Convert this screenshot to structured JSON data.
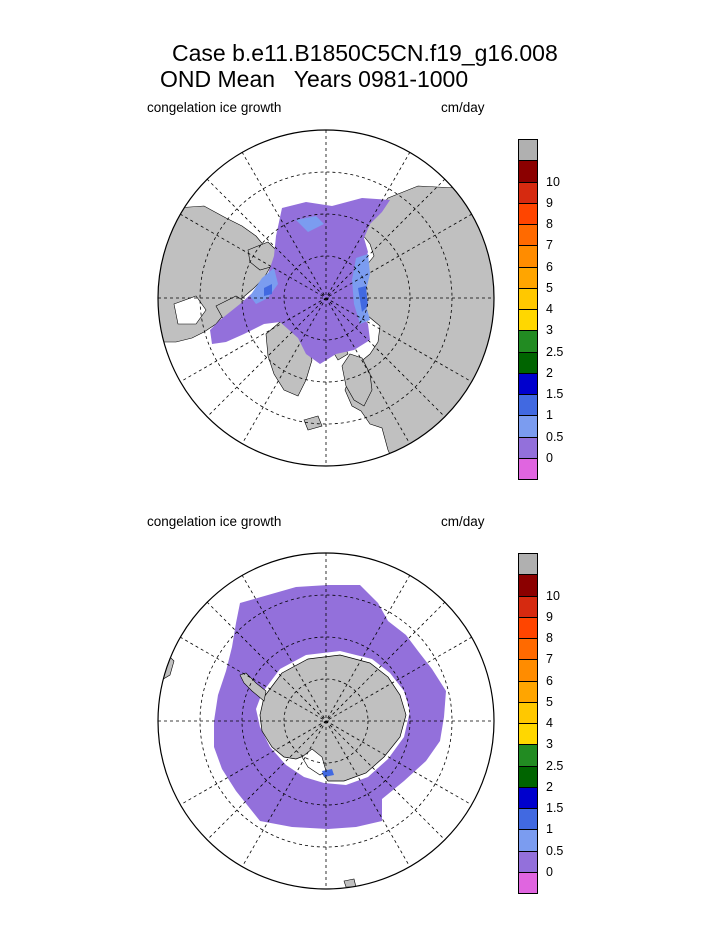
{
  "titles": {
    "line1": "Case b.e11.B1850C5CN.f19_g16.008",
    "line2": "OND Mean   Years 0981-1000"
  },
  "colors": {
    "land": "#c0c0c0",
    "ocean": "#ffffff",
    "grid": "#000000",
    "scale": [
      "#e065e0",
      "#9370db",
      "#7b9cf0",
      "#4169e1",
      "#0000cd",
      "#006400",
      "#228b22",
      "#ffd700",
      "#ffc800",
      "#ffa500",
      "#ff8c00",
      "#ff6a00",
      "#ff4500",
      "#d62a10",
      "#8b0000",
      "#b0b0b0"
    ]
  },
  "chart_data": [
    {
      "type": "heatmap",
      "projection": "north-polar-stereographic",
      "title": "congelation ice growth",
      "units": "cm/day",
      "levels": [
        "0",
        "0.5",
        "1",
        "1.5",
        "2",
        "2.5",
        "3",
        "4",
        "5",
        "6",
        "7",
        "8",
        "9",
        "10"
      ],
      "dominant_range": "0-0.5 over central Arctic, 0.5-1.5 along Siberian and Canadian shelves"
    },
    {
      "type": "heatmap",
      "projection": "south-polar-stereographic",
      "title": "congelation ice growth",
      "units": "cm/day",
      "levels": [
        "0",
        "0.5",
        "1",
        "1.5",
        "2",
        "2.5",
        "3",
        "4",
        "5",
        "6",
        "7",
        "8",
        "9",
        "10"
      ],
      "dominant_range": "0-0.5 throughout the Southern Ocean sea-ice ring"
    }
  ]
}
